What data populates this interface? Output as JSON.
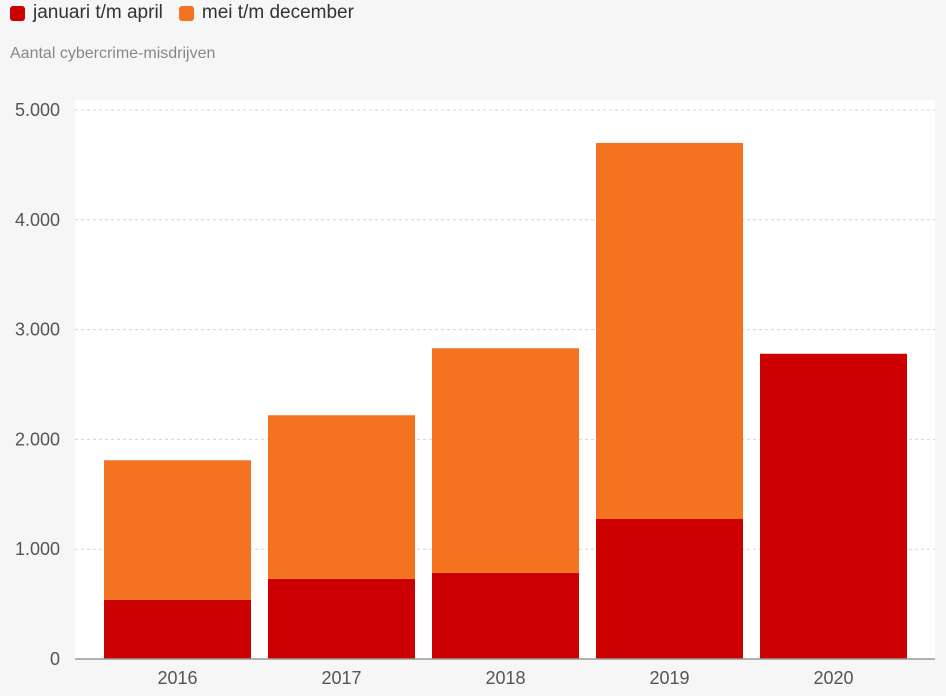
{
  "legend": [
    {
      "label": "januari t/m april",
      "color": "#cc0000"
    },
    {
      "label": "mei t/m december",
      "color": "#f37321"
    }
  ],
  "chart_data": {
    "type": "bar",
    "stacked": true,
    "title": "",
    "ylabel": "Aantal cybercrime-misdrijven",
    "categories": [
      "2016",
      "2017",
      "2018",
      "2019",
      "2020"
    ],
    "series": [
      {
        "name": "januari t/m april",
        "color": "#cc0000",
        "values": [
          540,
          730,
          785,
          1275,
          2780
        ]
      },
      {
        "name": "mei t/m december",
        "color": "#f37321",
        "values": [
          1270,
          1490,
          2045,
          3425,
          0
        ]
      }
    ],
    "ylim": [
      0,
      5000
    ],
    "yticks": [
      {
        "value": 0,
        "label": "0"
      },
      {
        "value": 1000,
        "label": "1.000"
      },
      {
        "value": 2000,
        "label": "2.000"
      },
      {
        "value": 3000,
        "label": "3.000"
      },
      {
        "value": 4000,
        "label": "4.000"
      },
      {
        "value": 5000,
        "label": "5.000"
      }
    ],
    "grid": true,
    "legend_position": "top-left"
  }
}
